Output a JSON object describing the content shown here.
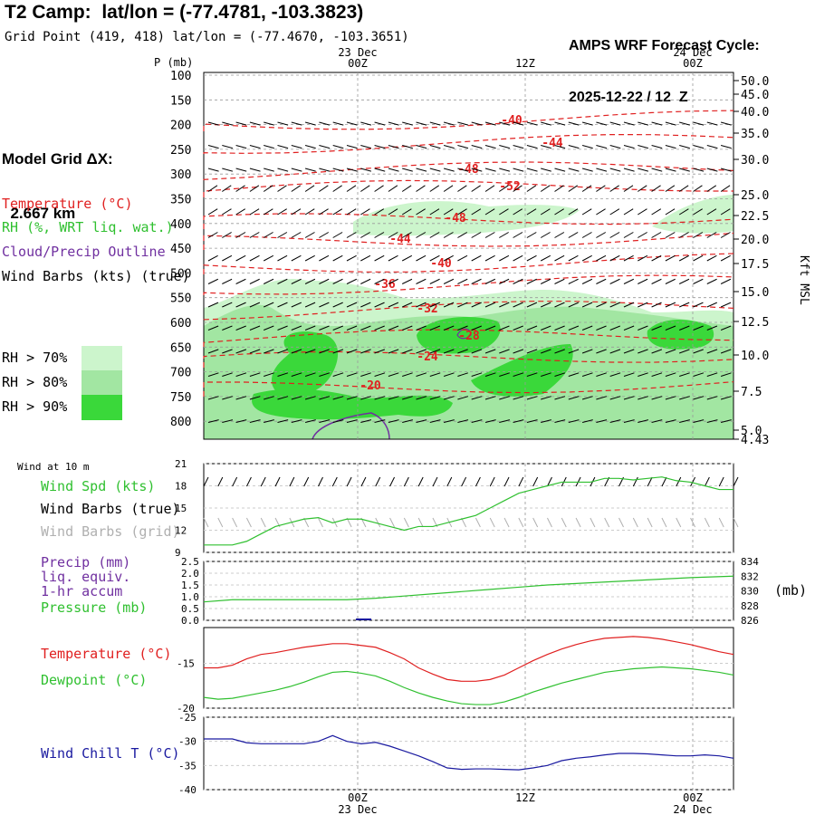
{
  "header": {
    "title": "T2 Camp:  lat/lon = (-77.4781, -103.3823)",
    "subtitle": "Grid Point (419, 418) lat/lon = (-77.4670, -103.3651)",
    "cycle_line1": "AMPS WRF Forecast Cycle:",
    "cycle_line2": "2025-12-22 / 12  Z"
  },
  "model_grid": {
    "line1": "Model Grid ΔX:",
    "line2": "  2.667 km"
  },
  "legend": {
    "temperature": "Temperature (°C)",
    "rh": "RH (%, WRT liq. wat.)",
    "cloud": "Cloud/Precip Outline",
    "wind_barbs": "Wind Barbs (kts) (true)",
    "rh70": "RH > 70%",
    "rh80": "RH > 80%",
    "rh90": "RH > 90%"
  },
  "colors": {
    "temp": "#e02020",
    "rh": "#30c030",
    "cloud": "#7030a0",
    "wind": "#000000",
    "rh70": "#ccf5cc",
    "rh80": "#a2e6a2",
    "rh90": "#3ad83a",
    "wind_grid": "#b0b0b0",
    "precip": "#1a1aa0",
    "chill": "#1a1aa0",
    "dew": "#30c030"
  },
  "time_axis": {
    "top_labels": [
      {
        "time": "00Z",
        "date": "23 Dec"
      },
      {
        "time": "12Z",
        "date": ""
      },
      {
        "time": "00Z",
        "date": "24 Dec"
      }
    ],
    "bottom_labels": [
      {
        "time": "00Z",
        "date": "23 Dec"
      },
      {
        "time": "12Z",
        "date": ""
      },
      {
        "time": "00Z",
        "date": "24 Dec"
      }
    ]
  },
  "chart_data": [
    {
      "type": "area",
      "name": "cross-section",
      "y_axis_left_title": "P (mb)",
      "y_axis_right_title": "Kft MSL",
      "pressure_ticks": [
        "100",
        "150",
        "200",
        "250",
        "300",
        "350",
        "400",
        "450",
        "500",
        "550",
        "600",
        "650",
        "700",
        "750",
        "800"
      ],
      "height_ticks": [
        "50.0",
        "45.0",
        "40.0",
        "35.0",
        "30.0",
        "25.0",
        "22.5",
        "20.0",
        "17.5",
        "15.0",
        "12.5",
        "10.0",
        "7.5",
        "5.0",
        "4.43"
      ],
      "isotherm_labels": [
        "-40",
        "-44",
        "-48",
        "-52",
        "-48",
        "-44",
        "-40",
        "-36",
        "-32",
        "-28",
        "-24",
        "-20"
      ]
    },
    {
      "type": "line",
      "name": "wind-10m",
      "title": "Wind at 10 m",
      "labels": [
        "Wind Spd (kts)",
        "Wind Barbs (true)",
        "Wind Barbs (grid)"
      ],
      "ylim": [
        9,
        21
      ],
      "y_ticks": [
        "21",
        "18",
        "15",
        "12",
        "9"
      ],
      "hours": [
        0,
        1,
        2,
        3,
        4,
        5,
        6,
        7,
        8,
        9,
        10,
        11,
        12,
        13,
        14,
        15,
        16,
        17,
        18,
        19,
        20,
        21,
        22,
        23,
        24,
        25,
        26,
        27,
        28,
        29,
        30,
        31,
        32,
        33,
        34,
        35,
        36,
        37
      ],
      "speed": [
        10,
        10,
        10,
        10.5,
        11.5,
        12.5,
        13,
        13.5,
        13.7,
        13,
        13.5,
        13.5,
        13,
        12.5,
        12,
        12.5,
        12.5,
        13,
        13.5,
        14,
        15,
        16,
        17,
        17.5,
        18,
        18.5,
        18.5,
        18.5,
        19,
        19,
        18.8,
        19,
        19.2,
        18.7,
        18.5,
        18,
        17.5,
        17.5
      ]
    },
    {
      "type": "line",
      "name": "precip-pressure",
      "labels": [
        "Precip (mm)",
        "liq. equiv.",
        "1-hr accum",
        "Pressure (mb)"
      ],
      "right_unit": "(mb)",
      "precip_ylim": [
        0,
        2.5
      ],
      "precip_ticks": [
        "2.5",
        "2.0",
        "1.5",
        "1.0",
        "0.5",
        "0.0"
      ],
      "pressure_ylim": [
        826,
        834
      ],
      "pressure_ticks": [
        "834",
        "832",
        "830",
        "828",
        "826"
      ],
      "hours": [
        0,
        2,
        4,
        6,
        8,
        10,
        12,
        14,
        16,
        18,
        20,
        22,
        24,
        26,
        28,
        30,
        32,
        34,
        37
      ],
      "pressure": [
        828.5,
        828.8,
        828.8,
        828.8,
        828.8,
        828.8,
        829.0,
        829.3,
        829.6,
        829.9,
        830.2,
        830.5,
        830.8,
        831.0,
        831.2,
        831.4,
        831.6,
        831.8,
        832.0
      ],
      "precip": [
        0,
        0,
        0,
        0,
        0,
        0,
        0,
        0,
        0,
        0,
        0,
        0,
        0,
        0,
        0,
        0,
        0,
        0,
        0
      ]
    },
    {
      "type": "line",
      "name": "temp-dewpoint",
      "labels": [
        "Temperature (°C)",
        "Dewpoint (°C)"
      ],
      "ylim": [
        -20,
        -11
      ],
      "y_ticks": [
        "-15",
        "-20"
      ],
      "hours": [
        0,
        1,
        2,
        3,
        4,
        5,
        6,
        7,
        8,
        9,
        10,
        11,
        12,
        13,
        14,
        15,
        16,
        17,
        18,
        19,
        20,
        21,
        22,
        23,
        24,
        25,
        26,
        27,
        28,
        29,
        30,
        31,
        32,
        33,
        34,
        35,
        36,
        37
      ],
      "temperature": [
        -15.5,
        -15.5,
        -15.2,
        -14.5,
        -14.0,
        -13.8,
        -13.5,
        -13.2,
        -13.0,
        -12.8,
        -12.8,
        -13.0,
        -13.2,
        -13.8,
        -14.5,
        -15.5,
        -16.2,
        -16.8,
        -17.0,
        -17.0,
        -16.8,
        -16.3,
        -15.5,
        -14.7,
        -14.0,
        -13.4,
        -12.9,
        -12.5,
        -12.2,
        -12.1,
        -12.0,
        -12.1,
        -12.3,
        -12.6,
        -12.9,
        -13.3,
        -13.7,
        -14.0
      ],
      "dewpoint": [
        -18.8,
        -19.0,
        -18.9,
        -18.6,
        -18.3,
        -18.0,
        -17.6,
        -17.1,
        -16.5,
        -16.0,
        -15.9,
        -16.1,
        -16.4,
        -17.0,
        -17.7,
        -18.3,
        -18.8,
        -19.2,
        -19.5,
        -19.6,
        -19.6,
        -19.3,
        -18.8,
        -18.2,
        -17.7,
        -17.2,
        -16.8,
        -16.4,
        -16.0,
        -15.8,
        -15.6,
        -15.5,
        -15.4,
        -15.5,
        -15.6,
        -15.8,
        -16.0,
        -16.3
      ]
    },
    {
      "type": "line",
      "name": "wind-chill",
      "labels": [
        "Wind Chill T (°C)"
      ],
      "ylim": [
        -40,
        -25
      ],
      "y_ticks": [
        "-25",
        "-30",
        "-35",
        "-40"
      ],
      "hours": [
        0,
        1,
        2,
        3,
        4,
        5,
        6,
        7,
        8,
        9,
        10,
        11,
        12,
        13,
        14,
        15,
        16,
        17,
        18,
        19,
        20,
        21,
        22,
        23,
        24,
        25,
        26,
        27,
        28,
        29,
        30,
        31,
        32,
        33,
        34,
        35,
        36,
        37
      ],
      "chill": [
        -29.5,
        -29.5,
        -29.5,
        -30.3,
        -30.5,
        -30.5,
        -30.5,
        -30.5,
        -30.0,
        -28.8,
        -30.0,
        -30.5,
        -30.2,
        -31.0,
        -32.0,
        -33.0,
        -34.2,
        -35.5,
        -35.8,
        -35.7,
        -35.7,
        -35.8,
        -35.9,
        -35.5,
        -35.0,
        -34.0,
        -33.5,
        -33.2,
        -32.8,
        -32.5,
        -32.5,
        -32.6,
        -32.8,
        -33.0,
        -33.0,
        -32.8,
        -33.0,
        -33.5
      ]
    }
  ]
}
